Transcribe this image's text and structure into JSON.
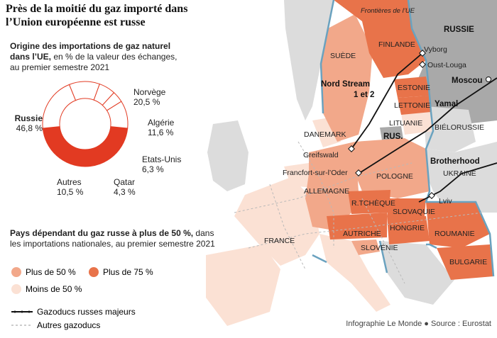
{
  "title": "Près de la moitié du gaz importé dans l’Union européenne est russe",
  "donut": {
    "subtitle_bold": "Origine des importations de gaz naturel dans l’UE,",
    "subtitle_rest": " en % de la valeur des échanges, au premier semestre 2021"
  },
  "legend": {
    "subtitle_bold": "Pays dépendant du gaz russe à plus de 50 %,",
    "subtitle_rest": " dans les importations nationales, au premier semestre 2021",
    "plus50": "Plus de 50 %",
    "plus75": "Plus de 75 %",
    "moins50": "Moins de 50 %",
    "pipelines_major": "Gazoducs russes majeurs",
    "pipelines_other": "Autres gazoducs"
  },
  "colors": {
    "plus75": "#e8734a",
    "plus50": "#f2a88a",
    "moins50": "#fbe1d4",
    "russia": "#a9a9a9",
    "non_eu": "#dcdcdc",
    "border": "#6aa2bf",
    "donut_russia": "#e23a22",
    "donut_outline": "#e23a22"
  },
  "chart_data": {
    "type": "pie",
    "title": "Origine des importations de gaz naturel dans l’UE, en % de la valeur des échanges, au premier semestre 2021",
    "slices": [
      {
        "label": "Russie",
        "value": 46.8,
        "display": "46,8 %"
      },
      {
        "label": "Norvège",
        "value": 20.5,
        "display": "20,5 %"
      },
      {
        "label": "Algérie",
        "value": 11.6,
        "display": "11,6 %"
      },
      {
        "label": "Etats-Unis",
        "value": 6.3,
        "display": "6,3 %"
      },
      {
        "label": "Qatar",
        "value": 4.3,
        "display": "4,3 %"
      },
      {
        "label": "Autres",
        "value": 10.5,
        "display": "10,5 %"
      }
    ]
  },
  "map": {
    "labels": {
      "russie": "RUSSIE",
      "frontieres": "Frontières de l’UE",
      "finlande": "FINLANDE",
      "suede": "SUÈDE",
      "vyborg": "Vyborg",
      "oust_louga": "Oust-Louga",
      "moscou": "Moscou",
      "nordstream1": "Nord Stream",
      "nordstream2": "1 et 2",
      "estonie": "ESTONIE",
      "lettonie": "LETTONIE",
      "yamal": "Yamal",
      "lituanie": "LITUANIE",
      "rus": "RUS.",
      "danemark": "DANEMARK",
      "bielorussie": "BIÉLORUSSIE",
      "greifswald": "Greifswald",
      "brotherhood": "Brotherhood",
      "francfort": "Francfort-sur-l’Oder",
      "ukraine": "UKRAINE",
      "pologne": "POLOGNE",
      "allemagne": "ALLEMAGNE",
      "rtcheque": "R.TCHÈQUE",
      "slovaquie": "SLOVAQUIE",
      "lviv": "Lviv",
      "france": "FRANCE",
      "autriche": "AUTRICHE",
      "hongrie": "HONGRIE",
      "roumanie": "ROUMANIE",
      "slovenie": "SLOVÉNIE",
      "bulgarie": "BULGARIE"
    }
  },
  "credit": "Infographie Le Monde ● Source : Eurostat"
}
